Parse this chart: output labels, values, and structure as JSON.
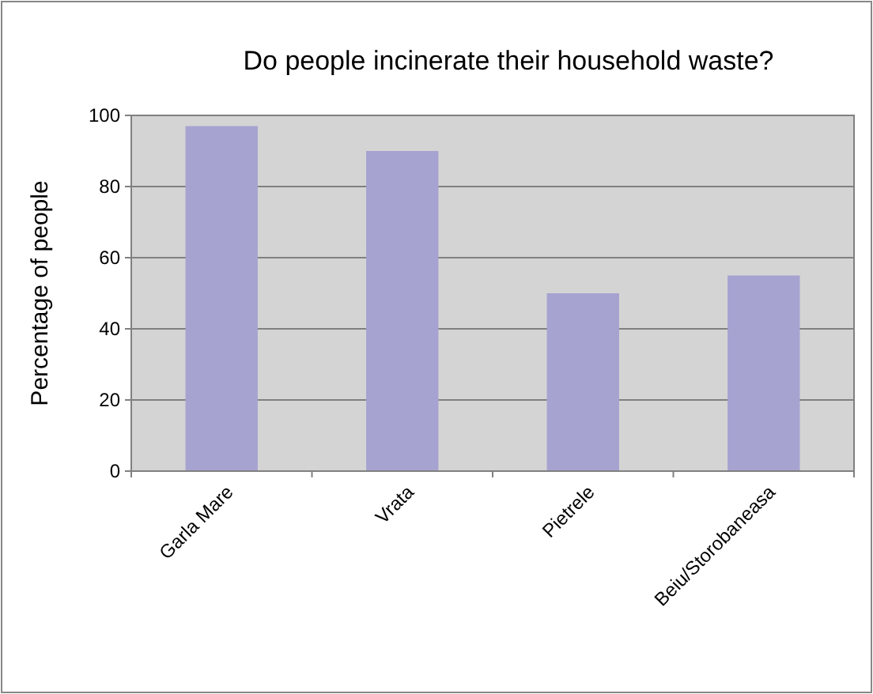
{
  "chart_data": {
    "type": "bar",
    "title": "Do people incinerate their household waste?",
    "ylabel": "Percentage of people",
    "categories": [
      "Garla Mare",
      "Vrata",
      "Pietrele",
      "Beiu/Storobaneasa"
    ],
    "values": [
      97,
      90,
      50,
      55
    ],
    "color": "#a6a3d0",
    "ylim": [
      0,
      100
    ],
    "yticks": [
      0,
      20,
      40,
      60,
      80,
      100
    ],
    "grid": "y"
  }
}
